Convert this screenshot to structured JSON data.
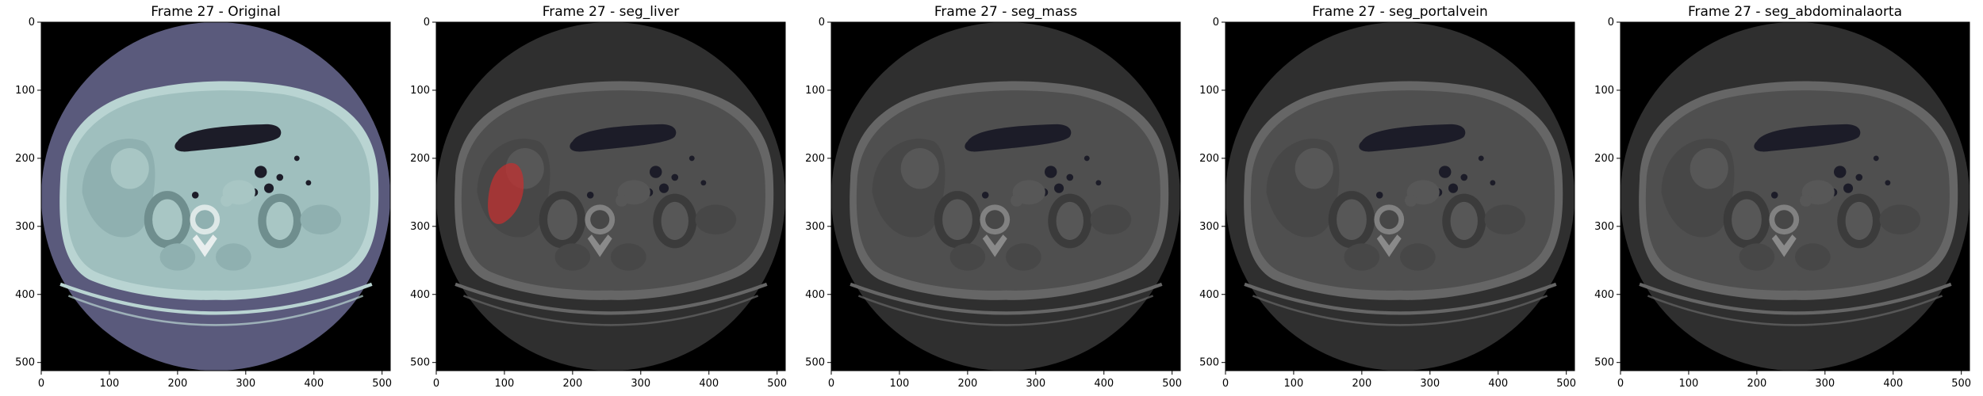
{
  "figure": {
    "panels": [
      {
        "title": "Frame 27 - Original",
        "mode": "original",
        "mask": null
      },
      {
        "title": "Frame 27 - seg_liver",
        "mode": "overlay",
        "mask": "liver",
        "mask_color": "#c03030"
      },
      {
        "title": "Frame 27 - seg_mass",
        "mode": "overlay",
        "mask": null
      },
      {
        "title": "Frame 27 - seg_portalvein",
        "mode": "overlay",
        "mask": null
      },
      {
        "title": "Frame 27 - seg_abdominalaorta",
        "mode": "overlay",
        "mask": null
      }
    ],
    "x_ticks": [
      "0",
      "100",
      "200",
      "300",
      "400",
      "500"
    ],
    "y_ticks": [
      "0",
      "100",
      "200",
      "300",
      "400",
      "500"
    ],
    "image_size": [
      512,
      512
    ],
    "colors": {
      "original_fov": "#5a5a7c",
      "original_tissue": "#9fbfbe",
      "original_rim": "#b9d4d2",
      "overlay_fov": "#2f2f2f",
      "overlay_tissue": "#4f4f4f",
      "overlay_rim": "#666666",
      "background": "#000000",
      "gas": "#1c1c28",
      "bone": "#e8eeee"
    },
    "icons": [
      "ct-axial-slice-image"
    ]
  }
}
